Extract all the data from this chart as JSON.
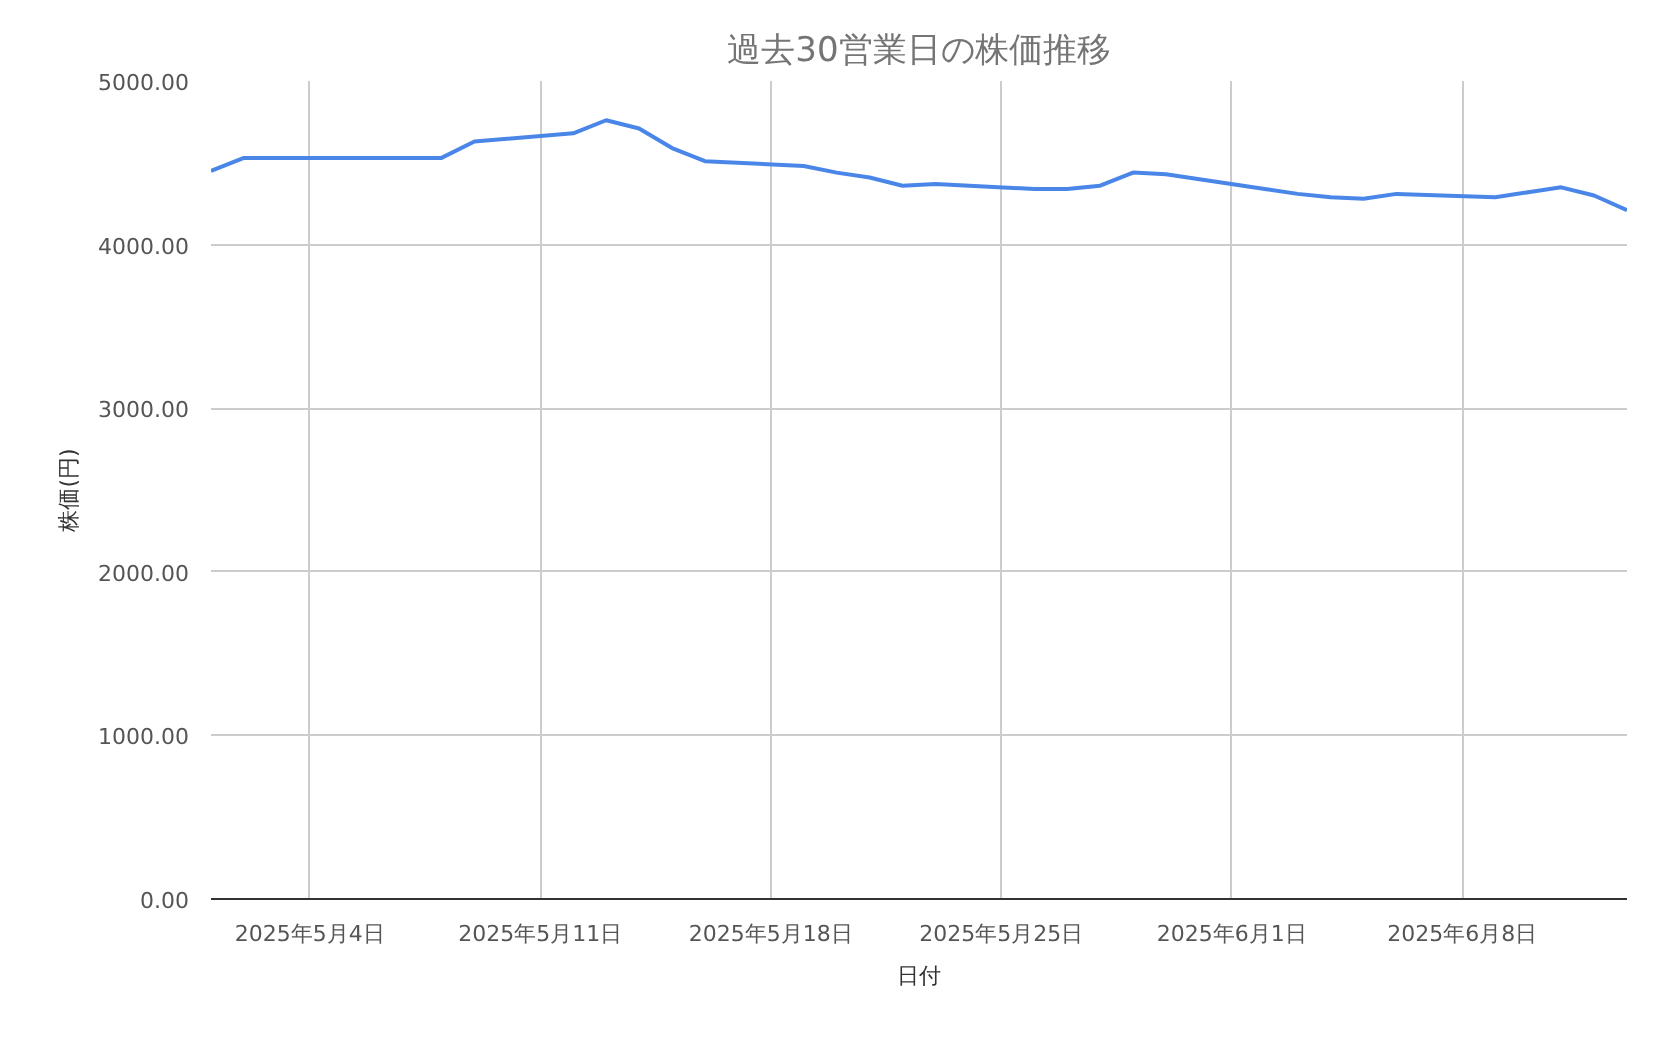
{
  "chart_data": {
    "type": "line",
    "title": "過去30営業日の株価推移",
    "xlabel": "日付",
    "ylabel": "株価(円)",
    "x": [
      "2025-05-01",
      "2025-05-02",
      "2025-05-07",
      "2025-05-08",
      "2025-05-09",
      "2025-05-12",
      "2025-05-13",
      "2025-05-14",
      "2025-05-15",
      "2025-05-16",
      "2025-05-19",
      "2025-05-20",
      "2025-05-21",
      "2025-05-22",
      "2025-05-23",
      "2025-05-26",
      "2025-05-27",
      "2025-05-28",
      "2025-05-29",
      "2025-05-30",
      "2025-06-02",
      "2025-06-03",
      "2025-06-04",
      "2025-06-05",
      "2025-06-06",
      "2025-06-09",
      "2025-06-10",
      "2025-06-11",
      "2025-06-12",
      "2025-06-13"
    ],
    "series": [
      {
        "color": "#4a86e8",
        "values": [
          4450,
          4530,
          4530,
          4530,
          4630,
          4680,
          4760,
          4710,
          4590,
          4510,
          4480,
          4440,
          4410,
          4360,
          4370,
          4340,
          4340,
          4360,
          4440,
          4430,
          4340,
          4310,
          4290,
          4280,
          4310,
          4290,
          4320,
          4350,
          4300,
          4210
        ]
      }
    ],
    "xlim": [
      "2025-05-01",
      "2025-06-13"
    ],
    "xticks": [
      {
        "value": "2025-05-04",
        "label": "2025年5月4日"
      },
      {
        "value": "2025-05-11",
        "label": "2025年5月11日"
      },
      {
        "value": "2025-05-18",
        "label": "2025年5月18日"
      },
      {
        "value": "2025-05-25",
        "label": "2025年5月25日"
      },
      {
        "value": "2025-06-01",
        "label": "2025年6月1日"
      },
      {
        "value": "2025-06-08",
        "label": "2025年6月8日"
      }
    ],
    "ylim": [
      0,
      5000
    ],
    "yticks": [
      {
        "value": 0,
        "label": "0.00"
      },
      {
        "value": 1000,
        "label": "1000.00"
      },
      {
        "value": 2000,
        "label": "2000.00"
      },
      {
        "value": 3000,
        "label": "3000.00"
      },
      {
        "value": 4000,
        "label": "4000.00"
      },
      {
        "value": 5000,
        "label": "5000.00"
      }
    ],
    "grid": true,
    "marker": "none",
    "line_style": "solid"
  }
}
